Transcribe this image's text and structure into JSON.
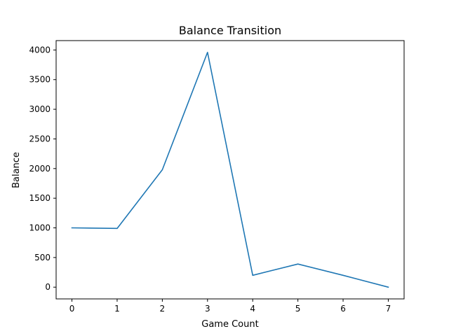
{
  "chart_data": {
    "type": "line",
    "title": "Balance Transition",
    "xlabel": "Game Count",
    "ylabel": "Balance",
    "x": [
      0,
      1,
      2,
      3,
      4,
      5,
      6,
      7
    ],
    "series": [
      {
        "values": [
          1000,
          990,
          1980,
          3960,
          200,
          390,
          200,
          0
        ],
        "color": "#1f77b4"
      }
    ],
    "xlim": [
      -0.35,
      7.35
    ],
    "ylim": [
      -198,
      4158
    ],
    "xticks": [
      "0",
      "1",
      "2",
      "3",
      "4",
      "5",
      "6",
      "7"
    ],
    "yticks": [
      "0",
      "500",
      "1000",
      "1500",
      "2000",
      "2500",
      "3000",
      "3500",
      "4000"
    ],
    "grid": false,
    "legend": "none"
  }
}
